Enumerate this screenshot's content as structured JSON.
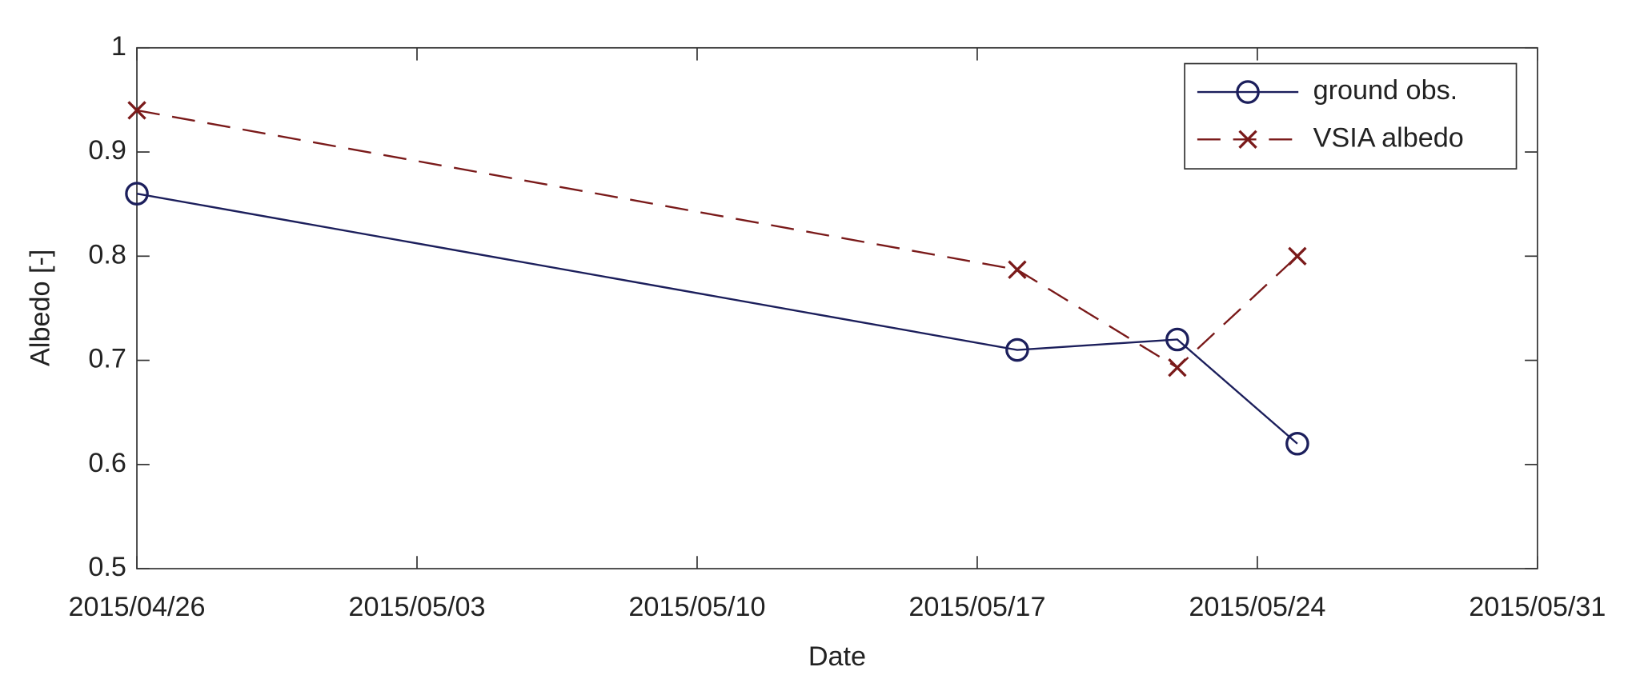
{
  "chart_data": {
    "type": "line",
    "x_label": "Date",
    "y_label": "Albedo [-]",
    "x": [
      "2015/04/26",
      "2015/05/18",
      "2015/05/22",
      "2015/05/25"
    ],
    "series": [
      {
        "name": "ground obs.",
        "color": "#1c1f5c",
        "marker": "circle",
        "dash": false,
        "values": [
          0.86,
          0.71,
          0.72,
          0.62
        ]
      },
      {
        "name": "VSIA albedo",
        "color": "#7a1a1a",
        "marker": "x",
        "dash": true,
        "values": [
          0.94,
          0.787,
          0.693,
          0.8
        ]
      }
    ],
    "xlim": [
      "2015/04/26",
      "2015/05/31"
    ],
    "xticks": [
      "2015/04/26",
      "2015/05/03",
      "2015/05/10",
      "2015/05/17",
      "2015/05/24",
      "2015/05/31"
    ],
    "ylim": [
      0.5,
      1
    ],
    "yticks": [
      0.5,
      0.6,
      0.7,
      0.8,
      0.9,
      1
    ],
    "grid": false,
    "legend": "upper right"
  }
}
